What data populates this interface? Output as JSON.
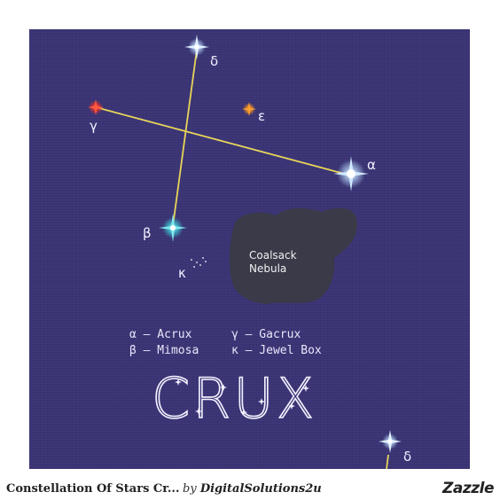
{
  "poster": {
    "stars": {
      "delta": {
        "symbol": "δ"
      },
      "gamma": {
        "symbol": "γ"
      },
      "epsilon": {
        "symbol": "ε"
      },
      "alpha": {
        "symbol": "α"
      },
      "beta": {
        "symbol": "β"
      },
      "kappa": {
        "symbol": "κ"
      },
      "delta_repeat": {
        "symbol": "δ"
      }
    },
    "nebula": {
      "line1": "Coalsack",
      "line2": "Nebula"
    },
    "legend": {
      "alpha": "α – Acrux",
      "beta": "β – Mimosa",
      "gamma": "γ – Gacrux",
      "kappa": "κ – Jewel Box"
    },
    "title": "CRUX",
    "colors": {
      "background": "#3a3475",
      "line": "#e8d45a",
      "nebula": "#3a3a48",
      "gamma_star": "#e8322a",
      "epsilon_star": "#f08a24",
      "beta_star": "#3ed0d8",
      "alpha_star": "#a8d8ff"
    }
  },
  "footer": {
    "product_title": "Constellation Of Stars Cr...",
    "by_prefix": "by",
    "seller": "DigitalSolutions2u",
    "brand": "Zazzle"
  }
}
